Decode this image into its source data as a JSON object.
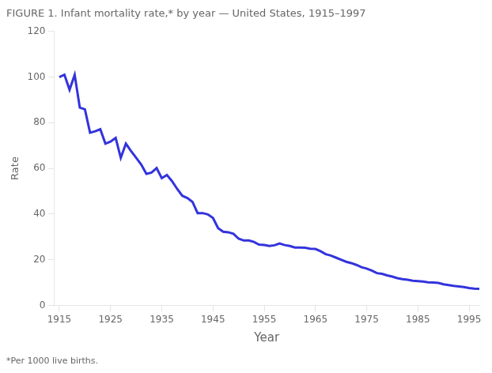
{
  "chart_data": {
    "type": "line",
    "title": "FIGURE 1. Infant mortality rate,* by year — United States, 1915–1997",
    "xlabel": "Year",
    "ylabel": "Rate",
    "footnote": "*Per 1000 live births.",
    "color": "#3333dd",
    "grid": false,
    "xlim": [
      1914,
      1997
    ],
    "ylim": [
      0,
      120
    ],
    "xticks": [
      1915,
      1925,
      1935,
      1945,
      1955,
      1965,
      1975,
      1985,
      1995
    ],
    "yticks": [
      0,
      20,
      40,
      60,
      80,
      100,
      120
    ],
    "x": [
      1915,
      1916,
      1917,
      1918,
      1919,
      1920,
      1921,
      1922,
      1923,
      1924,
      1925,
      1926,
      1927,
      1928,
      1929,
      1930,
      1931,
      1932,
      1933,
      1934,
      1935,
      1936,
      1937,
      1938,
      1939,
      1940,
      1941,
      1942,
      1943,
      1944,
      1945,
      1946,
      1947,
      1948,
      1949,
      1950,
      1951,
      1952,
      1953,
      1954,
      1955,
      1956,
      1957,
      1958,
      1959,
      1960,
      1961,
      1962,
      1963,
      1964,
      1965,
      1966,
      1967,
      1968,
      1969,
      1970,
      1971,
      1972,
      1973,
      1974,
      1975,
      1976,
      1977,
      1978,
      1979,
      1980,
      1981,
      1982,
      1983,
      1984,
      1985,
      1986,
      1987,
      1988,
      1989,
      1990,
      1991,
      1992,
      1993,
      1994,
      1995,
      1996,
      1997
    ],
    "values": [
      99.9,
      101.0,
      94.4,
      100.9,
      86.6,
      85.8,
      75.6,
      76.2,
      77.1,
      70.8,
      71.7,
      73.3,
      64.6,
      70.8,
      67.6,
      64.6,
      61.6,
      57.6,
      58.1,
      60.1,
      55.7,
      57.1,
      54.4,
      51.0,
      48.0,
      47.0,
      45.3,
      40.4,
      40.4,
      39.8,
      38.3,
      33.8,
      32.2,
      32.0,
      31.3,
      29.2,
      28.4,
      28.4,
      27.8,
      26.6,
      26.4,
      26.0,
      26.3,
      27.1,
      26.4,
      26.0,
      25.3,
      25.3,
      25.2,
      24.8,
      24.7,
      23.7,
      22.4,
      21.8,
      20.9,
      20.0,
      19.1,
      18.5,
      17.7,
      16.7,
      16.1,
      15.2,
      14.1,
      13.8,
      13.1,
      12.6,
      11.9,
      11.5,
      11.2,
      10.8,
      10.6,
      10.4,
      10.1,
      10.0,
      9.8,
      9.2,
      8.9,
      8.5,
      8.3,
      8.0,
      7.6,
      7.3,
      7.2
    ]
  }
}
